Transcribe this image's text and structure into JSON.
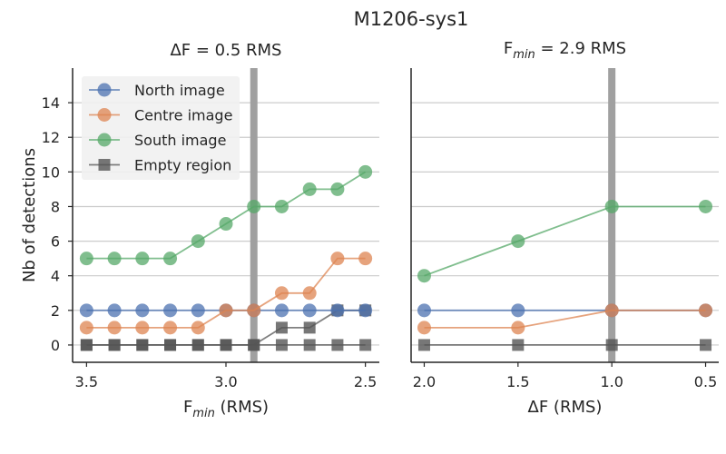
{
  "figure": {
    "title": "M1206-sys1"
  },
  "chart_data": [
    {
      "type": "line",
      "title": "ΔF = 0.5 RMS",
      "xlabel_main": "F",
      "xlabel_sub": "min",
      "xlabel_tail": " (RMS)",
      "ylabel": "Nb of detections",
      "x": [
        3.5,
        3.4,
        3.3,
        3.2,
        3.1,
        3.0,
        2.9,
        2.8,
        2.7,
        2.6,
        2.5
      ],
      "xlim": [
        3.55,
        2.45
      ],
      "ylim": [
        -1,
        16
      ],
      "x_inverted": true,
      "xticks": [
        "3.5",
        "3.0",
        "2.5"
      ],
      "yticks": [
        "0",
        "2",
        "4",
        "6",
        "8",
        "10",
        "12",
        "14"
      ],
      "marker_line": 2.9,
      "grid": "horizontal",
      "legend_position": "top-left",
      "series": [
        {
          "name": "Empty region",
          "marker": "square",
          "color": "#555555",
          "values": [
            0,
            0,
            0,
            0,
            0,
            0,
            0,
            0,
            0,
            0,
            0
          ]
        },
        {
          "name": "",
          "marker": "square",
          "color": "#555555",
          "values": [
            0,
            0,
            0,
            0,
            0,
            0,
            0,
            1,
            1,
            2,
            2
          ]
        },
        {
          "name": "North image",
          "marker": "circle",
          "color": "#4c72b0",
          "values": [
            2,
            2,
            2,
            2,
            2,
            2,
            2,
            2,
            2,
            2,
            2
          ]
        },
        {
          "name": "Centre image",
          "marker": "circle",
          "color": "#dd8452",
          "values": [
            1,
            1,
            1,
            1,
            1,
            2,
            2,
            3,
            3,
            5,
            5
          ]
        },
        {
          "name": "South image",
          "marker": "circle",
          "color": "#55a868",
          "values": [
            5,
            5,
            5,
            5,
            6,
            7,
            8,
            8,
            9,
            9,
            10
          ]
        }
      ],
      "legend": [
        "North image",
        "Centre image",
        "South image",
        "Empty region"
      ]
    },
    {
      "type": "line",
      "title_main": "F",
      "title_sub": "min",
      "title_tail": " = 2.9 RMS",
      "xlabel": "ΔF (RMS)",
      "x": [
        2.0,
        1.5,
        1.0,
        0.5
      ],
      "xlim": [
        2.07,
        0.43
      ],
      "ylim": [
        -1,
        16
      ],
      "x_inverted": true,
      "xticks": [
        "2.0",
        "1.5",
        "1.0",
        "0.5"
      ],
      "marker_line": 1.0,
      "grid": "horizontal",
      "series": [
        {
          "name": "Empty region",
          "marker": "square",
          "color": "#555555",
          "values": [
            0,
            0,
            0,
            0
          ]
        },
        {
          "name": "North image",
          "marker": "circle",
          "color": "#4c72b0",
          "values": [
            2,
            2,
            2,
            2
          ]
        },
        {
          "name": "Centre image",
          "marker": "circle",
          "color": "#dd8452",
          "values": [
            1,
            1,
            2,
            2
          ]
        },
        {
          "name": "South image",
          "marker": "circle",
          "color": "#55a868",
          "values": [
            4,
            6,
            8,
            8
          ]
        }
      ]
    }
  ]
}
